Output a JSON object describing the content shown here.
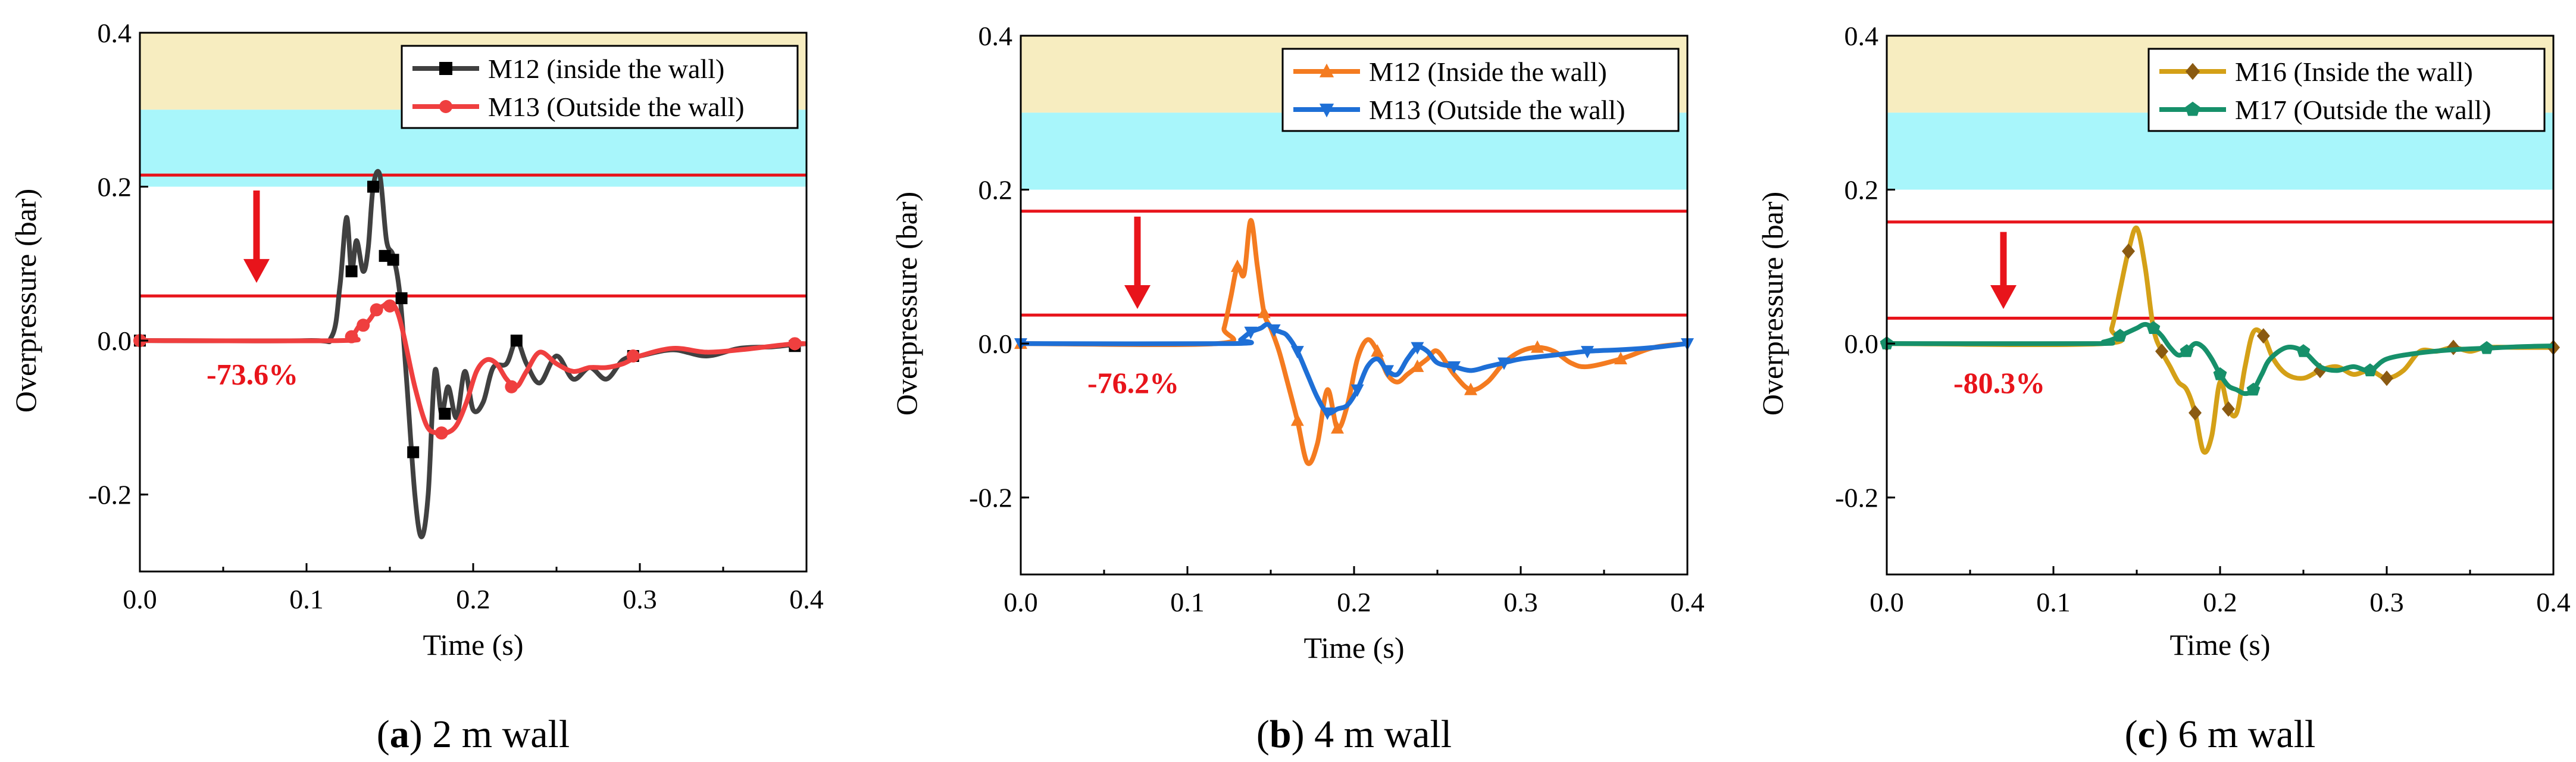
{
  "figure": {
    "xlabel": "Time (s)",
    "ylabel": "Overpressure (bar)"
  },
  "colors": {
    "band_yellow": "#f7edc0",
    "band_cyan": "#a8f6fb",
    "threshold_line": "#e8141b",
    "arrow": "#e8141b",
    "axis": "#000000"
  },
  "chart_data": [
    {
      "type": "line",
      "panel_label": "a",
      "caption": "2 m wall",
      "xlabel": "Time (s)",
      "ylabel": "Overpressure (bar)",
      "xlim": [
        0,
        0.4
      ],
      "ylim": [
        -0.3,
        0.4
      ],
      "xticks": [
        "0.0",
        "0.1",
        "0.2",
        "0.3",
        "0.4"
      ],
      "yticks": [
        "-0.2",
        "0.0",
        "0.2",
        "0.4"
      ],
      "bands": [
        {
          "from": 0.3,
          "to": 0.4,
          "color": "#f7edc0"
        },
        {
          "from": 0.2,
          "to": 0.3,
          "color": "#a8f6fb"
        }
      ],
      "hlines": [
        0.215,
        0.058
      ],
      "arrow": {
        "x": 0.07,
        "y_from": 0.195,
        "y_to": 0.075
      },
      "annotation": {
        "text": "-73.6%",
        "x": 0.04,
        "y": -0.043
      },
      "legend": {
        "position": "top-right"
      },
      "series": [
        {
          "name": "M12 (inside the wall)",
          "color": "#404040",
          "marker": "square",
          "x": [
            0,
            0.1,
            0.115,
            0.12,
            0.124,
            0.127,
            0.13,
            0.134,
            0.137,
            0.14,
            0.144,
            0.148,
            0.152,
            0.156,
            0.16,
            0.165,
            0.169,
            0.173,
            0.177,
            0.181,
            0.185,
            0.19,
            0.195,
            0.2,
            0.206,
            0.212,
            0.22,
            0.226,
            0.232,
            0.24,
            0.25,
            0.26,
            0.27,
            0.28,
            0.29,
            0.3,
            0.32,
            0.34,
            0.36,
            0.38,
            0.393,
            0.4
          ],
          "y": [
            0,
            0,
            0.005,
            0.07,
            0.16,
            0.09,
            0.13,
            0.09,
            0.12,
            0.2,
            0.215,
            0.13,
            0.11,
            0.06,
            -0.05,
            -0.2,
            -0.255,
            -0.2,
            -0.04,
            -0.095,
            -0.06,
            -0.1,
            -0.04,
            -0.09,
            -0.08,
            -0.035,
            -0.03,
            0,
            -0.03,
            -0.055,
            -0.02,
            -0.05,
            -0.035,
            -0.05,
            -0.025,
            -0.02,
            -0.012,
            -0.02,
            -0.01,
            -0.008,
            -0.005,
            -0.004
          ],
          "markers_x": [
            0,
            0.127,
            0.14,
            0.147,
            0.152,
            0.157,
            0.164,
            0.183,
            0.226,
            0.296,
            0.393
          ],
          "markers_y": [
            0,
            0.09,
            0.2,
            0.11,
            0.105,
            0.055,
            -0.145,
            -0.095,
            0,
            -0.02,
            -0.007
          ]
        },
        {
          "name": "M13 (Outside the wall)",
          "color": "#ef3f3f",
          "marker": "circle",
          "x": [
            0,
            0.12,
            0.127,
            0.132,
            0.137,
            0.142,
            0.146,
            0.15,
            0.154,
            0.158,
            0.165,
            0.172,
            0.178,
            0.184,
            0.19,
            0.196,
            0.202,
            0.208,
            0.214,
            0.22,
            0.226,
            0.232,
            0.24,
            0.25,
            0.26,
            0.27,
            0.28,
            0.29,
            0.3,
            0.32,
            0.34,
            0.36,
            0.38,
            0.393,
            0.4
          ],
          "y": [
            0,
            0,
            0.005,
            0.02,
            0.025,
            0.04,
            0.045,
            0.05,
            0.04,
            0.01,
            -0.06,
            -0.11,
            -0.12,
            -0.12,
            -0.11,
            -0.08,
            -0.04,
            -0.025,
            -0.03,
            -0.05,
            -0.06,
            -0.04,
            -0.015,
            -0.03,
            -0.04,
            -0.035,
            -0.035,
            -0.03,
            -0.02,
            -0.01,
            -0.015,
            -0.012,
            -0.007,
            -0.004,
            -0.004
          ],
          "markers_x": [
            0,
            0.127,
            0.134,
            0.142,
            0.15,
            0.181,
            0.223,
            0.296,
            0.393
          ],
          "markers_y": [
            0,
            0.005,
            0.02,
            0.04,
            0.045,
            -0.12,
            -0.06,
            -0.02,
            -0.004
          ]
        }
      ]
    },
    {
      "type": "line",
      "panel_label": "b",
      "caption": "4 m wall",
      "xlabel": "Time (s)",
      "ylabel": "Overpressure (bar)",
      "xlim": [
        0,
        0.4
      ],
      "ylim": [
        -0.3,
        0.4
      ],
      "xticks": [
        "0.0",
        "0.1",
        "0.2",
        "0.3",
        "0.4"
      ],
      "yticks": [
        "-0.2",
        "0.0",
        "0.2",
        "0.4"
      ],
      "bands": [
        {
          "from": 0.3,
          "to": 0.4,
          "color": "#f7edc0"
        },
        {
          "from": 0.2,
          "to": 0.3,
          "color": "#a8f6fb"
        }
      ],
      "hlines": [
        0.172,
        0.037
      ],
      "arrow": {
        "x": 0.07,
        "y_from": 0.165,
        "y_to": 0.045
      },
      "annotation": {
        "text": "-76.2%",
        "x": 0.04,
        "y": -0.05
      },
      "legend": {
        "position": "top-right"
      },
      "series": [
        {
          "name": "M12 (Inside the wall)",
          "color": "#f47b20",
          "marker": "triangle-up",
          "x": [
            0,
            0.118,
            0.122,
            0.126,
            0.13,
            0.134,
            0.138,
            0.142,
            0.146,
            0.15,
            0.155,
            0.16,
            0.166,
            0.172,
            0.178,
            0.184,
            0.19,
            0.196,
            0.202,
            0.208,
            0.214,
            0.22,
            0.226,
            0.232,
            0.238,
            0.244,
            0.25,
            0.26,
            0.27,
            0.28,
            0.29,
            0.3,
            0.31,
            0.32,
            0.33,
            0.34,
            0.36,
            0.38,
            0.4
          ],
          "y": [
            0,
            0,
            0.02,
            0.06,
            0.1,
            0.09,
            0.16,
            0.1,
            0.04,
            0.02,
            -0.01,
            -0.05,
            -0.1,
            -0.155,
            -0.13,
            -0.06,
            -0.11,
            -0.08,
            -0.02,
            0.005,
            -0.01,
            -0.04,
            -0.05,
            -0.04,
            -0.03,
            -0.02,
            -0.01,
            -0.04,
            -0.06,
            -0.05,
            -0.025,
            -0.01,
            -0.005,
            -0.01,
            -0.025,
            -0.03,
            -0.02,
            -0.005,
            0
          ]
        },
        {
          "name": "M13 (Outside the wall)",
          "color": "#1e6fd6",
          "marker": "triangle-down",
          "x": [
            0,
            0.128,
            0.132,
            0.138,
            0.144,
            0.148,
            0.152,
            0.156,
            0.16,
            0.166,
            0.172,
            0.178,
            0.184,
            0.19,
            0.196,
            0.202,
            0.208,
            0.214,
            0.22,
            0.226,
            0.232,
            0.238,
            0.244,
            0.25,
            0.26,
            0.27,
            0.28,
            0.29,
            0.3,
            0.32,
            0.34,
            0.36,
            0.38,
            0.4
          ],
          "y": [
            0,
            0,
            0.005,
            0.015,
            0.02,
            0.025,
            0.018,
            0.015,
            0.01,
            -0.01,
            -0.04,
            -0.07,
            -0.09,
            -0.085,
            -0.08,
            -0.06,
            -0.03,
            -0.02,
            -0.035,
            -0.04,
            -0.02,
            -0.005,
            -0.01,
            -0.025,
            -0.03,
            -0.035,
            -0.03,
            -0.025,
            -0.02,
            -0.015,
            -0.01,
            -0.008,
            -0.005,
            0
          ]
        }
      ]
    },
    {
      "type": "line",
      "panel_label": "c",
      "caption": "6 m wall",
      "xlabel": "Time (s)",
      "ylabel": "Overpressure (bar)",
      "xlim": [
        0,
        0.4
      ],
      "ylim": [
        -0.3,
        0.4
      ],
      "xticks": [
        "0.0",
        "0.1",
        "0.2",
        "0.3",
        "0.4"
      ],
      "yticks": [
        "-0.2",
        "0.0",
        "0.2",
        "0.4"
      ],
      "bands": [
        {
          "from": 0.3,
          "to": 0.4,
          "color": "#f7edc0"
        },
        {
          "from": 0.2,
          "to": 0.3,
          "color": "#a8f6fb"
        }
      ],
      "hlines": [
        0.158,
        0.033
      ],
      "arrow": {
        "x": 0.07,
        "y_from": 0.145,
        "y_to": 0.045
      },
      "annotation": {
        "text": "-80.3%",
        "x": 0.04,
        "y": -0.05
      },
      "legend": {
        "position": "top-right"
      },
      "series": [
        {
          "name": "M16 (Inside the wall)",
          "color": "#d4a017",
          "marker": "diamond",
          "x": [
            0,
            0.13,
            0.135,
            0.14,
            0.145,
            0.15,
            0.155,
            0.16,
            0.165,
            0.17,
            0.175,
            0.18,
            0.185,
            0.19,
            0.195,
            0.2,
            0.205,
            0.21,
            0.215,
            0.22,
            0.226,
            0.232,
            0.24,
            0.25,
            0.26,
            0.27,
            0.28,
            0.29,
            0.3,
            0.31,
            0.32,
            0.33,
            0.34,
            0.35,
            0.36,
            0.38,
            0.4
          ],
          "y": [
            0,
            0,
            0.02,
            0.07,
            0.12,
            0.15,
            0.1,
            0.02,
            -0.01,
            -0.03,
            -0.05,
            -0.06,
            -0.09,
            -0.14,
            -0.12,
            -0.05,
            -0.085,
            -0.09,
            -0.03,
            0.015,
            0.01,
            -0.02,
            -0.04,
            -0.045,
            -0.035,
            -0.03,
            -0.04,
            -0.035,
            -0.045,
            -0.035,
            -0.01,
            -0.01,
            -0.005,
            -0.01,
            -0.005,
            -0.005,
            -0.005
          ]
        },
        {
          "name": "M17 (Outside the wall)",
          "color": "#16906a",
          "marker": "pentagon",
          "x": [
            0,
            0.125,
            0.13,
            0.135,
            0.14,
            0.145,
            0.15,
            0.155,
            0.16,
            0.165,
            0.17,
            0.175,
            0.18,
            0.185,
            0.19,
            0.195,
            0.2,
            0.205,
            0.21,
            0.215,
            0.22,
            0.225,
            0.23,
            0.24,
            0.25,
            0.26,
            0.27,
            0.28,
            0.29,
            0.3,
            0.32,
            0.34,
            0.36,
            0.38,
            0.4
          ],
          "y": [
            0,
            0,
            0.002,
            0.005,
            0.01,
            0.015,
            0.02,
            0.025,
            0.02,
            0.01,
            -0.005,
            -0.015,
            -0.01,
            0,
            -0.005,
            -0.02,
            -0.04,
            -0.055,
            -0.06,
            -0.065,
            -0.06,
            -0.04,
            -0.02,
            -0.005,
            -0.01,
            -0.03,
            -0.035,
            -0.03,
            -0.035,
            -0.02,
            -0.012,
            -0.008,
            -0.006,
            -0.004,
            -0.003
          ]
        }
      ]
    }
  ]
}
